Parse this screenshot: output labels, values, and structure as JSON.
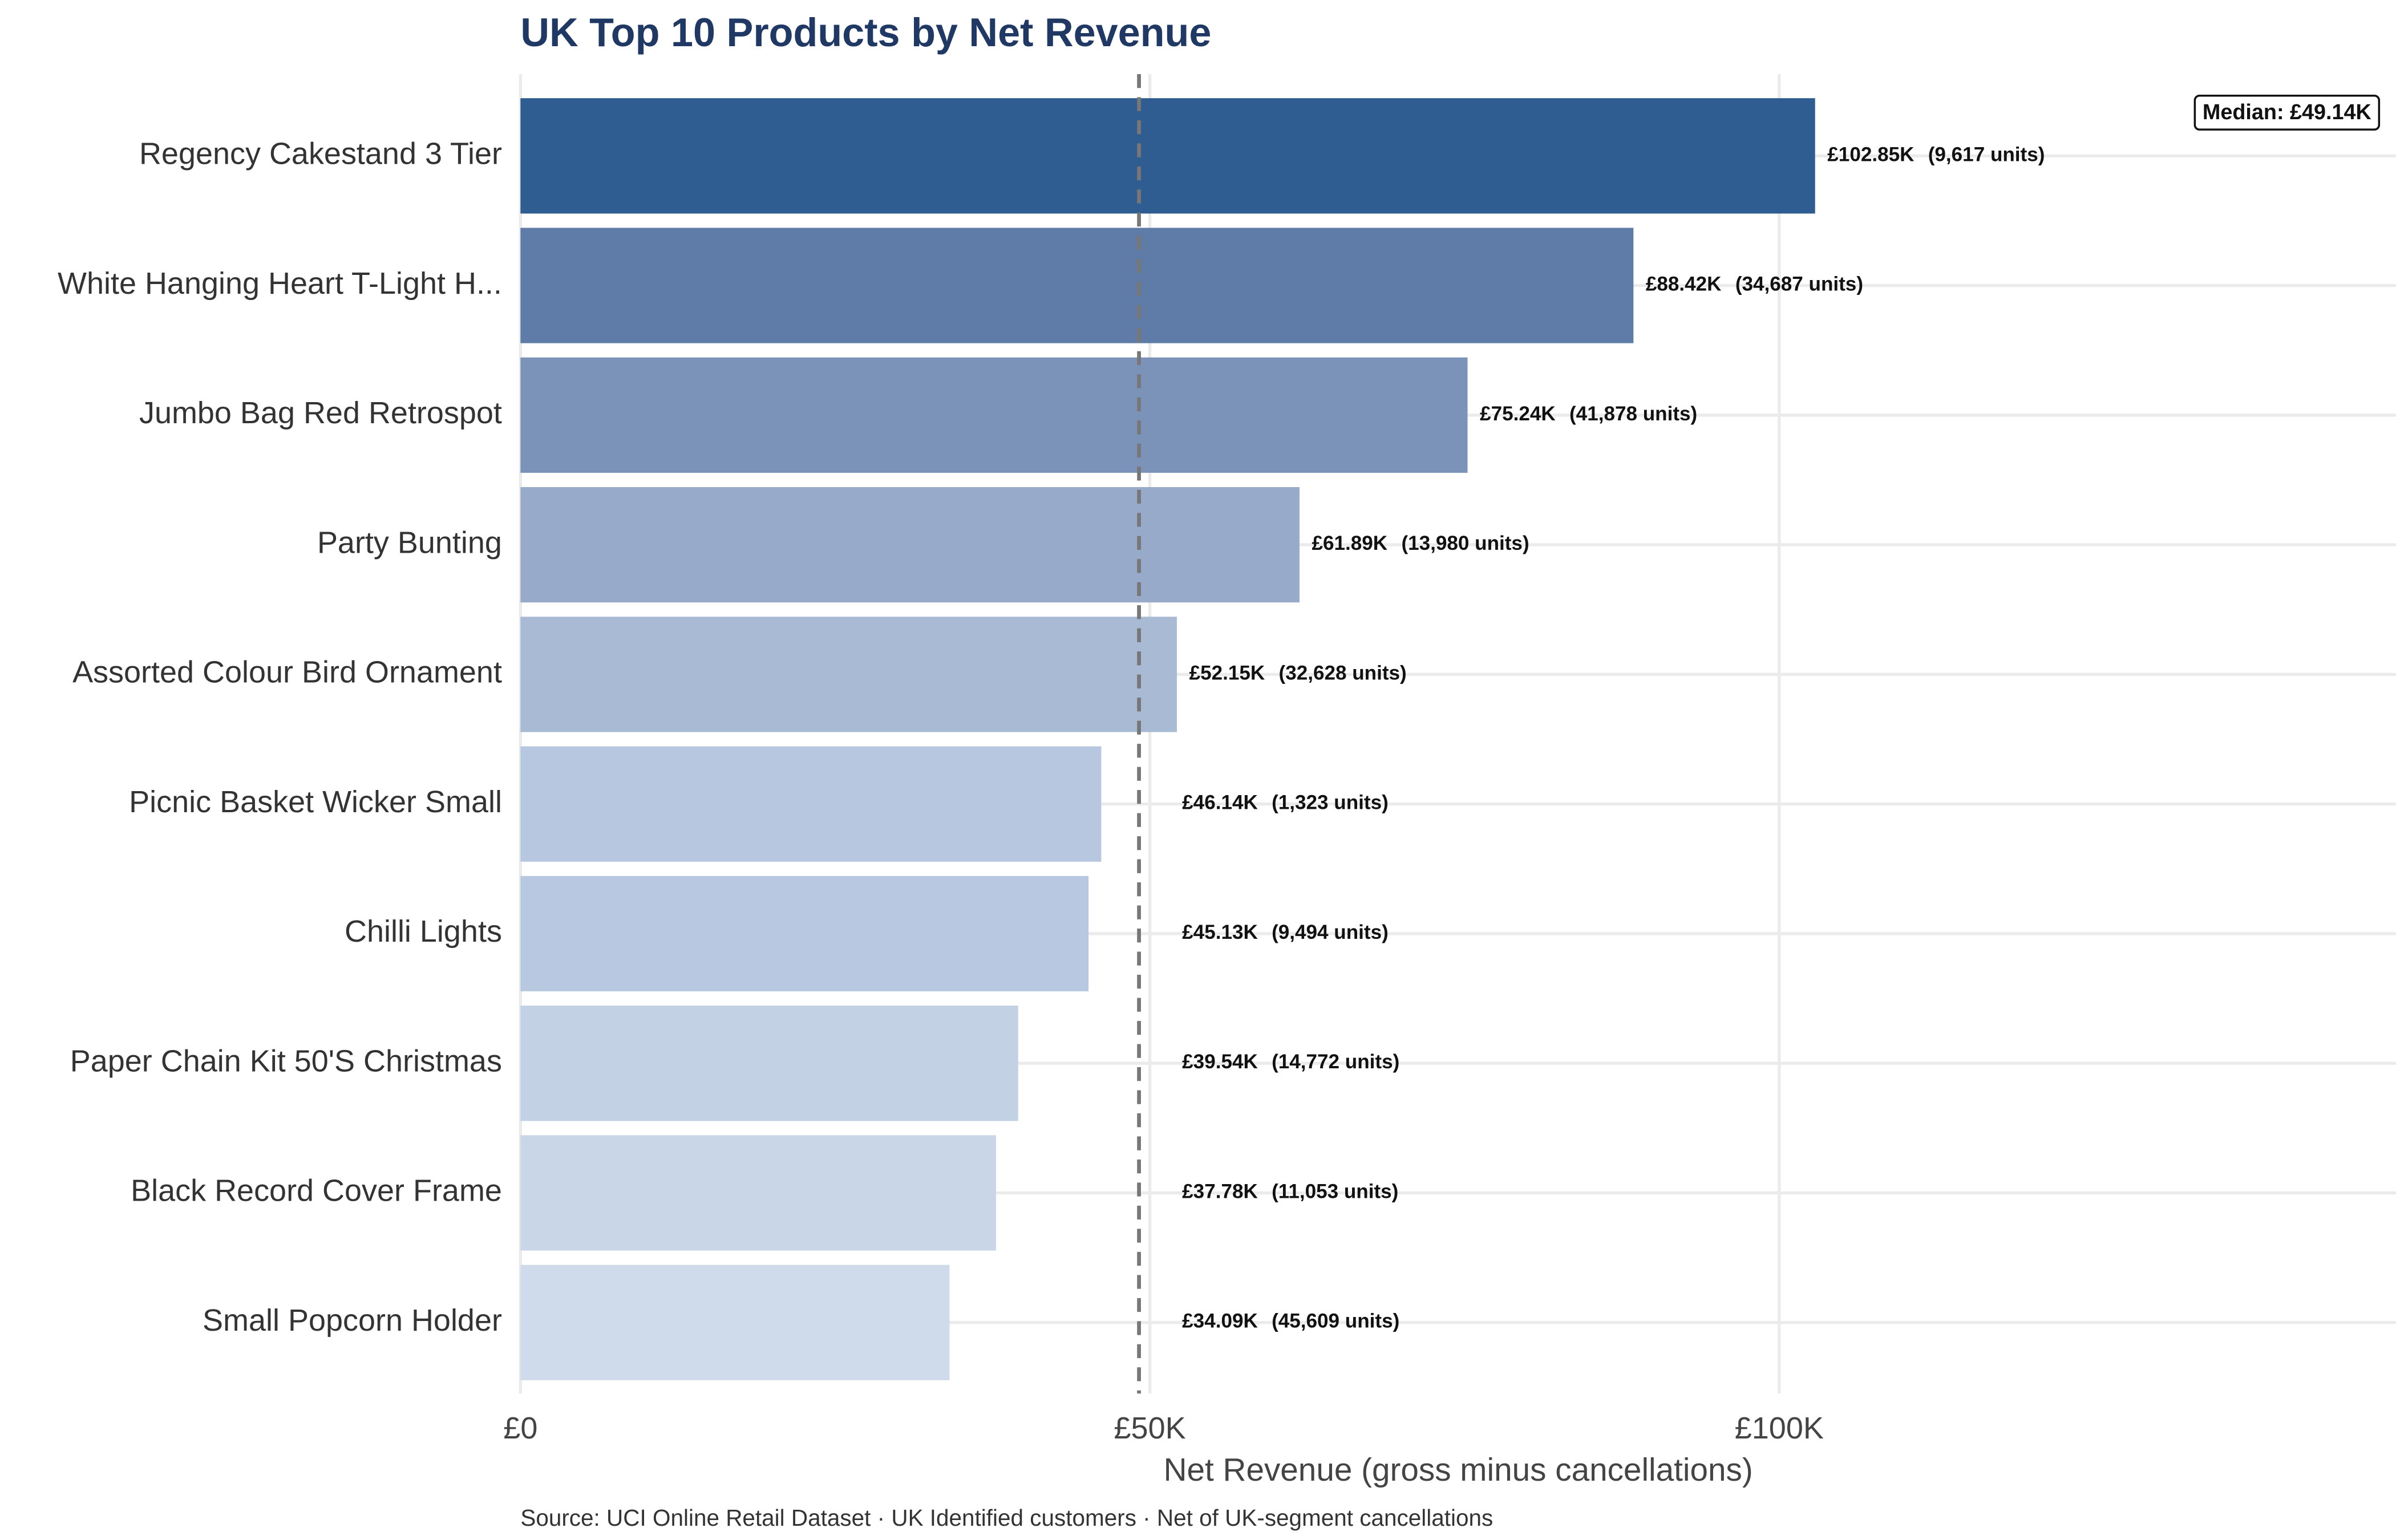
{
  "chart_data": {
    "type": "barh",
    "title": "UK Top 10 Products by Net Revenue",
    "x_label": "Net Revenue (gross minus cancellations)",
    "caption": "Source: UCI Online Retail Dataset · UK Identified customers · Net of UK-segment cancellations",
    "categories": [
      "Regency Cakestand 3 Tier",
      "White Hanging Heart T-Light H...",
      "Jumbo Bag Red Retrospot",
      "Party Bunting",
      "Assorted Colour Bird Ornament",
      "Picnic Basket Wicker Small",
      "Chilli Lights",
      "Paper Chain Kit 50'S Christmas",
      "Black Record Cover Frame",
      "Small Popcorn Holder"
    ],
    "values": [
      102850,
      88420,
      75240,
      61890,
      52150,
      46140,
      45130,
      39540,
      37780,
      34090
    ],
    "value_labels": [
      "£102.85K",
      "£88.42K",
      "£75.24K",
      "£61.89K",
      "£52.15K",
      "£46.14K",
      "£45.13K",
      "£39.54K",
      "£37.78K",
      "£34.09K"
    ],
    "unit_labels": [
      "(9,617 units)",
      "(34,687 units)",
      "(41,878 units)",
      "(13,980 units)",
      "(32,628 units)",
      "(1,323 units)",
      "(9,494 units)",
      "(14,772 units)",
      "(11,053 units)",
      "(45,609 units)"
    ],
    "colors": [
      "#2f5d91",
      "#5f7ba8",
      "#7b93b9",
      "#97aaca",
      "#a9bad5",
      "#b6c7df",
      "#b8c8e0",
      "#c2d1e4",
      "#c8d6e8",
      "#cfdbea"
    ],
    "median": {
      "value": 49140,
      "label": "Median: £49.14K"
    },
    "xlim": [
      0,
      149000
    ],
    "xticks": [
      {
        "value": 0,
        "label": "£0"
      },
      {
        "value": 50000,
        "label": "£50K"
      },
      {
        "value": 100000,
        "label": "£100K"
      }
    ],
    "grid": true
  }
}
